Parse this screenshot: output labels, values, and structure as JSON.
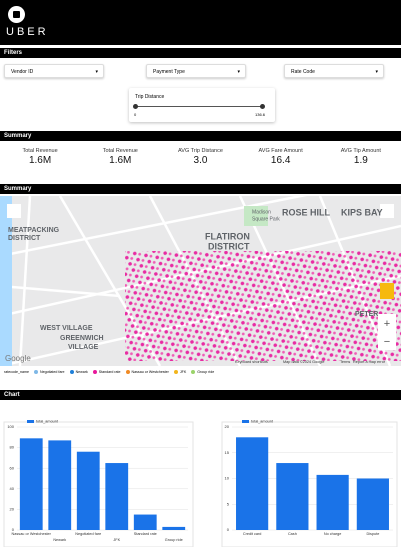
{
  "header": {
    "logo": "UBER"
  },
  "filters": {
    "title": "Filters",
    "dropdowns": [
      "Vendor ID",
      "Payment Type",
      "Rate Code"
    ],
    "slider": {
      "label": "Trip Distance",
      "min": "0",
      "max": "136.6"
    }
  },
  "summary": {
    "title": "Summary",
    "metrics": [
      {
        "label": "Total Revenue",
        "value": "1.6M"
      },
      {
        "label": "Total Revenue",
        "value": "1.6M"
      },
      {
        "label": "AVG Trip Distance",
        "value": "3.0"
      },
      {
        "label": "AVG Fare Amount",
        "value": "16.4"
      },
      {
        "label": "AVG Tip Amount",
        "value": "1.9"
      }
    ]
  },
  "map": {
    "title": "Summary",
    "labels": [
      "ROSE HILL",
      "KIPS BAY",
      "MEATPACKING",
      "DISTRICT",
      "FLATIRON",
      "DISTRICT",
      "WEST VILLAGE",
      "GREENWICH",
      "VILLAGE",
      "Madison",
      "Square Park",
      "PETER"
    ],
    "footer": [
      "Keyboard shortcuts",
      "Map data ©2024 Google",
      "Terms",
      "Report a map error"
    ],
    "google": "Google",
    "legend": {
      "title": "ratecode_name",
      "items": [
        {
          "name": "Negotiated fare",
          "color": "#7fb8e6"
        },
        {
          "name": "Newark",
          "color": "#1f7fd8"
        },
        {
          "name": "Standard rate",
          "color": "#e8179b"
        },
        {
          "name": "Nassau or Westchester",
          "color": "#f08a24"
        },
        {
          "name": "JFK",
          "color": "#f2b51c"
        },
        {
          "name": "Group ride",
          "color": "#9ad36a"
        }
      ]
    }
  },
  "chart_section": {
    "title": "Chart"
  },
  "chart_data": [
    {
      "type": "bar",
      "series": [
        {
          "name": "total_amount",
          "color": "#1a73e8",
          "values": [
            89,
            87,
            76,
            65,
            15,
            3
          ]
        }
      ],
      "categories": [
        "Nassau or Westchester",
        "Newark",
        "Negotiated fare",
        "JFK",
        "Standard rate",
        "Group ride"
      ],
      "ylim": [
        0,
        100
      ],
      "yticks": [
        0,
        20,
        40,
        60,
        80,
        100
      ],
      "grid": true
    },
    {
      "type": "bar",
      "series": [
        {
          "name": "total_amount",
          "color": "#1a73e8",
          "values": [
            18,
            13,
            10.7,
            10
          ]
        }
      ],
      "categories": [
        "Credit card",
        "Cash",
        "No charge",
        "Dispute"
      ],
      "ylim": [
        0,
        20
      ],
      "yticks": [
        0,
        5,
        10,
        15,
        20
      ],
      "grid": true
    }
  ]
}
